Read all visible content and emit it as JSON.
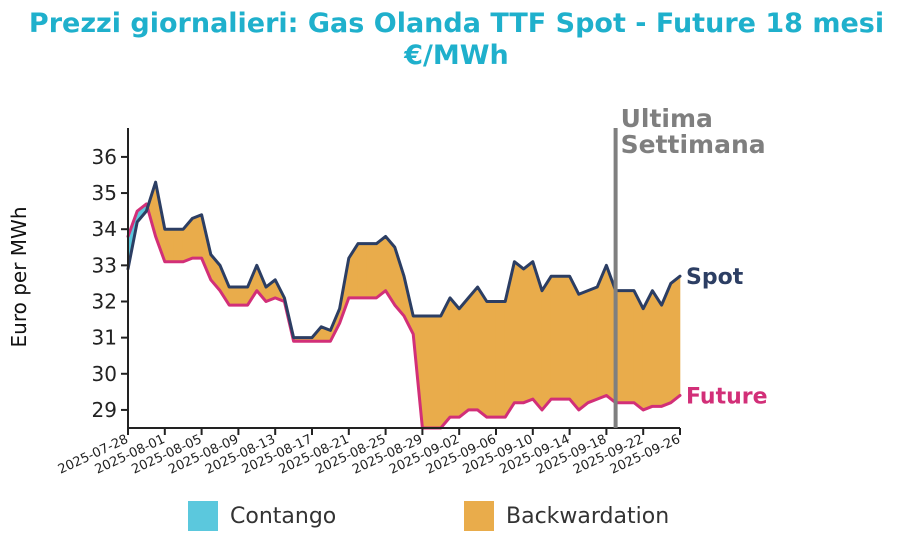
{
  "title": "Prezzi giornalieri: Gas Olanda TTF Spot - Future 18 mesi\n€/MWh",
  "colors": {
    "title": "#1fb0cc",
    "spot": "#2c3e63",
    "future": "#d22f78",
    "contango": "#5bc8dd",
    "backwardation": "#e9ac4b",
    "vline": "#7f7f7f"
  },
  "chart_data": {
    "type": "area",
    "title": "Prezzi giornalieri: Gas Olanda TTF Spot - Future 18 mesi €/MWh",
    "xlabel": "",
    "ylabel": "Euro per MWh",
    "ylim": [
      28.5,
      36.8
    ],
    "yticks": [
      29,
      30,
      31,
      32,
      33,
      34,
      35,
      36
    ],
    "xlim": [
      "2025-07-28",
      "2025-09-26"
    ],
    "xticks": [
      "2025-07-28",
      "2025-08-01",
      "2025-08-05",
      "2025-08-09",
      "2025-08-13",
      "2025-08-17",
      "2025-08-21",
      "2025-08-25",
      "2025-08-29",
      "2025-09-02",
      "2025-09-06",
      "2025-09-10",
      "2025-09-14",
      "2025-09-18",
      "2025-09-22",
      "2025-09-26"
    ],
    "grid": false,
    "series": [
      {
        "name": "Spot",
        "x": [
          "2025-07-28",
          "2025-07-29",
          "2025-07-30",
          "2025-07-31",
          "2025-08-01",
          "2025-08-02",
          "2025-08-03",
          "2025-08-04",
          "2025-08-05",
          "2025-08-06",
          "2025-08-07",
          "2025-08-08",
          "2025-08-09",
          "2025-08-10",
          "2025-08-11",
          "2025-08-12",
          "2025-08-13",
          "2025-08-14",
          "2025-08-15",
          "2025-08-16",
          "2025-08-17",
          "2025-08-18",
          "2025-08-19",
          "2025-08-20",
          "2025-08-21",
          "2025-08-22",
          "2025-08-23",
          "2025-08-24",
          "2025-08-25",
          "2025-08-26",
          "2025-08-27",
          "2025-08-28",
          "2025-08-29",
          "2025-08-30",
          "2025-08-31",
          "2025-09-01",
          "2025-09-02",
          "2025-09-03",
          "2025-09-04",
          "2025-09-05",
          "2025-09-06",
          "2025-09-07",
          "2025-09-08",
          "2025-09-09",
          "2025-09-10",
          "2025-09-11",
          "2025-09-12",
          "2025-09-13",
          "2025-09-14",
          "2025-09-15",
          "2025-09-16",
          "2025-09-17",
          "2025-09-18",
          "2025-09-19",
          "2025-09-20",
          "2025-09-21",
          "2025-09-22",
          "2025-09-23",
          "2025-09-24",
          "2025-09-25",
          "2025-09-26"
        ],
        "values": [
          32.9,
          34.2,
          34.5,
          35.3,
          34.0,
          34.0,
          34.0,
          34.3,
          34.4,
          33.3,
          33.0,
          32.4,
          32.4,
          32.4,
          33.0,
          32.4,
          32.6,
          32.1,
          31.0,
          31.0,
          31.0,
          31.3,
          31.2,
          31.8,
          33.2,
          33.6,
          33.6,
          33.6,
          33.8,
          33.5,
          32.7,
          31.6,
          31.6,
          31.6,
          31.6,
          32.1,
          31.8,
          32.1,
          32.4,
          32.0,
          32.0,
          32.0,
          33.1,
          32.9,
          33.1,
          32.3,
          32.7,
          32.7,
          32.7,
          32.2,
          32.3,
          32.4,
          33.0,
          32.3,
          32.3,
          32.3,
          31.8,
          32.3,
          31.9,
          32.5,
          32.7
        ]
      },
      {
        "name": "Future",
        "x": [
          "2025-07-28",
          "2025-07-29",
          "2025-07-30",
          "2025-07-31",
          "2025-08-01",
          "2025-08-02",
          "2025-08-03",
          "2025-08-04",
          "2025-08-05",
          "2025-08-06",
          "2025-08-07",
          "2025-08-08",
          "2025-08-09",
          "2025-08-10",
          "2025-08-11",
          "2025-08-12",
          "2025-08-13",
          "2025-08-14",
          "2025-08-15",
          "2025-08-16",
          "2025-08-17",
          "2025-08-18",
          "2025-08-19",
          "2025-08-20",
          "2025-08-21",
          "2025-08-22",
          "2025-08-23",
          "2025-08-24",
          "2025-08-25",
          "2025-08-26",
          "2025-08-27",
          "2025-08-28",
          "2025-08-29",
          "2025-08-30",
          "2025-08-31",
          "2025-09-01",
          "2025-09-02",
          "2025-09-03",
          "2025-09-04",
          "2025-09-05",
          "2025-09-06",
          "2025-09-07",
          "2025-09-08",
          "2025-09-09",
          "2025-09-10",
          "2025-09-11",
          "2025-09-12",
          "2025-09-13",
          "2025-09-14",
          "2025-09-15",
          "2025-09-16",
          "2025-09-17",
          "2025-09-18",
          "2025-09-19",
          "2025-09-20",
          "2025-09-21",
          "2025-09-22",
          "2025-09-23",
          "2025-09-24",
          "2025-09-25",
          "2025-09-26"
        ],
        "values": [
          33.8,
          34.5,
          34.7,
          33.8,
          33.1,
          33.1,
          33.1,
          33.2,
          33.2,
          32.6,
          32.3,
          31.9,
          31.9,
          31.9,
          32.3,
          32.0,
          32.1,
          32.0,
          30.9,
          30.9,
          30.9,
          30.9,
          30.9,
          31.4,
          32.1,
          32.1,
          32.1,
          32.1,
          32.3,
          31.9,
          31.6,
          31.1,
          28.5,
          28.5,
          28.5,
          28.8,
          28.8,
          29.0,
          29.0,
          28.8,
          28.8,
          28.8,
          29.2,
          29.2,
          29.3,
          29.0,
          29.3,
          29.3,
          29.3,
          29.0,
          29.2,
          29.3,
          29.4,
          29.2,
          29.2,
          29.2,
          29.0,
          29.1,
          29.1,
          29.2,
          29.4
        ]
      }
    ],
    "fill_between": [
      "Spot",
      "Future"
    ],
    "series_labels": [
      "Spot",
      "Future"
    ],
    "vline": {
      "x": "2025-09-19",
      "label": "Ultima\nSettimana"
    },
    "legend": {
      "position": "bottom",
      "entries": [
        "Contango",
        "Backwardation"
      ]
    }
  }
}
